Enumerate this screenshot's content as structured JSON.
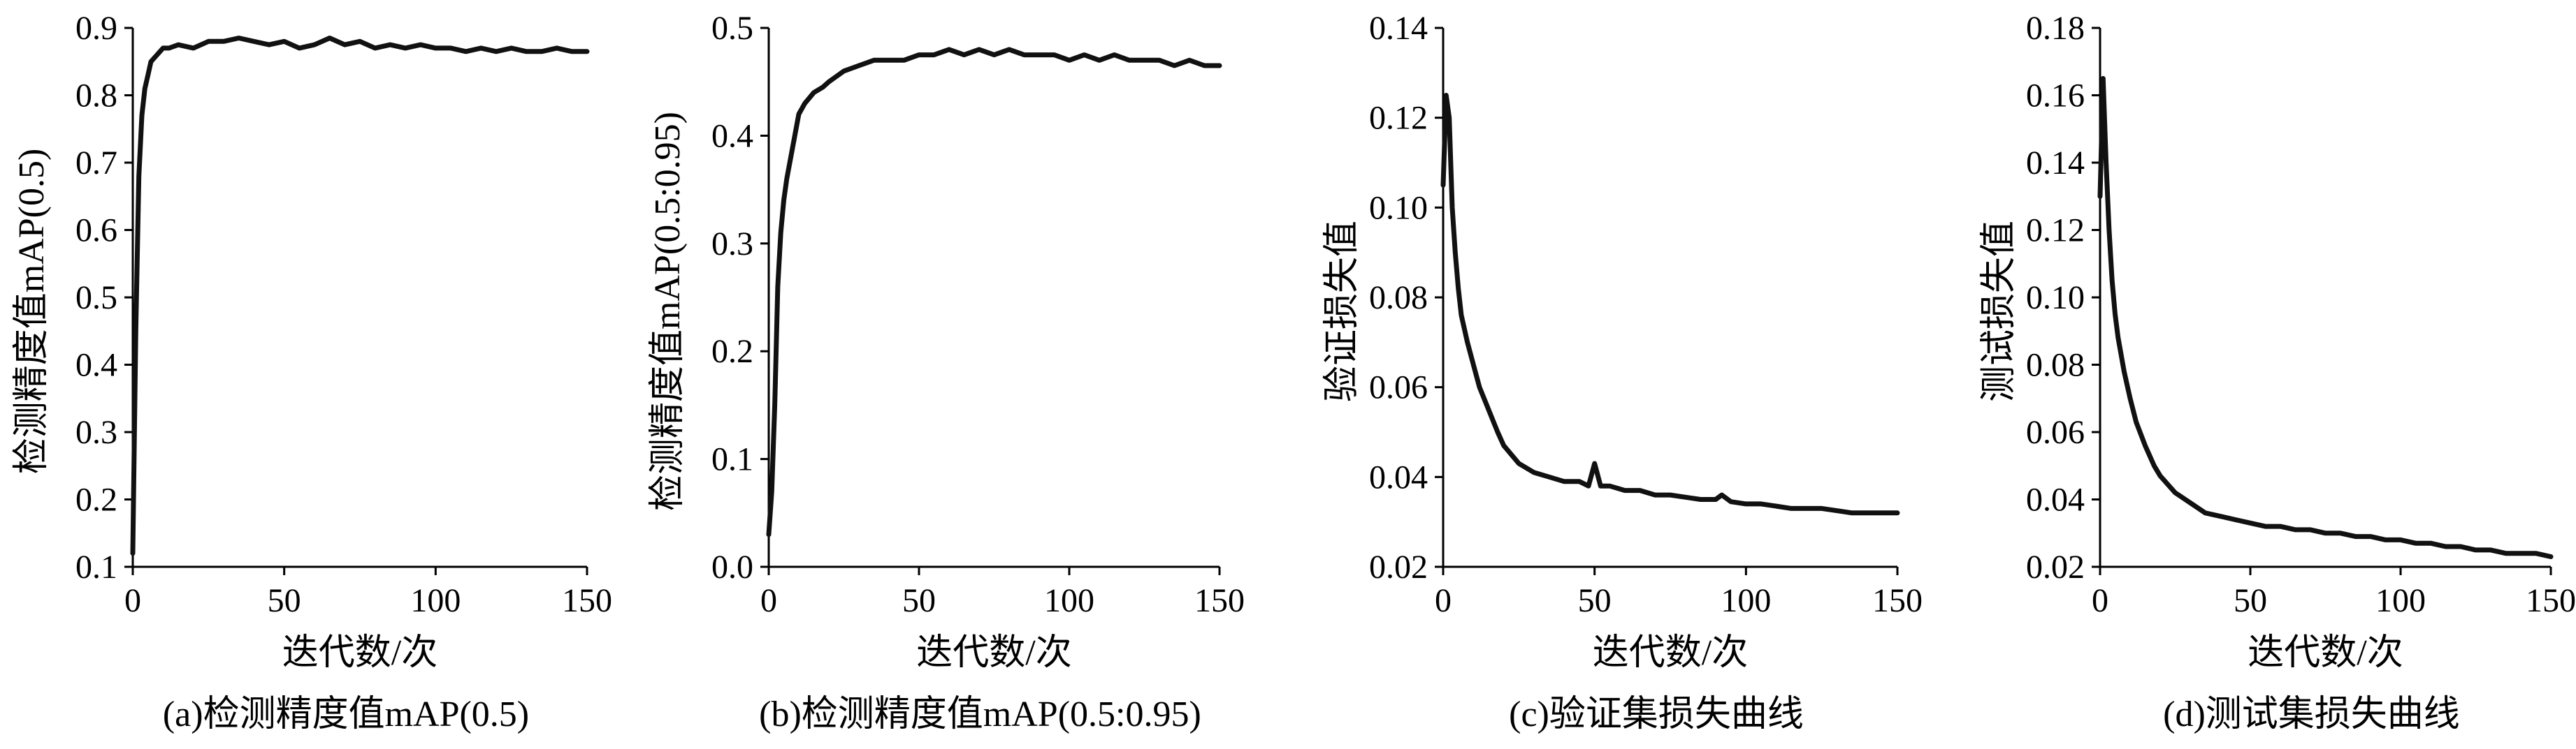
{
  "chart_data": [
    {
      "type": "line",
      "caption": "(a)检测精度值mAP(0.5)",
      "xlabel": "迭代数/次",
      "ylabel": "检测精度值mAP(0.5)",
      "xlim": [
        0,
        150
      ],
      "ylim": [
        0.1,
        0.9
      ],
      "xticks": [
        "0",
        "50",
        "100",
        "150"
      ],
      "yticks": [
        "0.1",
        "0.2",
        "0.3",
        "0.4",
        "0.5",
        "0.6",
        "0.7",
        "0.8",
        "0.9"
      ],
      "grid": false,
      "series": [
        {
          "x": [
            0,
            1,
            2,
            3,
            4,
            5,
            6,
            8,
            10,
            12,
            15,
            20,
            25,
            30,
            35,
            40,
            45,
            50,
            55,
            60,
            65,
            70,
            75,
            80,
            85,
            90,
            95,
            100,
            105,
            110,
            115,
            120,
            125,
            130,
            135,
            140,
            145,
            150
          ],
          "y": [
            0.12,
            0.45,
            0.68,
            0.77,
            0.81,
            0.83,
            0.85,
            0.86,
            0.87,
            0.87,
            0.875,
            0.87,
            0.88,
            0.88,
            0.885,
            0.88,
            0.875,
            0.88,
            0.87,
            0.875,
            0.885,
            0.875,
            0.88,
            0.87,
            0.875,
            0.87,
            0.875,
            0.87,
            0.87,
            0.865,
            0.87,
            0.865,
            0.87,
            0.865,
            0.865,
            0.87,
            0.865,
            0.865
          ]
        }
      ]
    },
    {
      "type": "line",
      "caption": "(b)检测精度值mAP(0.5:0.95)",
      "xlabel": "迭代数/次",
      "ylabel": "检测精度值mAP(0.5:0.95)",
      "xlim": [
        0,
        150
      ],
      "ylim": [
        0.0,
        0.5
      ],
      "xticks": [
        "0",
        "50",
        "100",
        "150"
      ],
      "yticks": [
        "0.0",
        "0.1",
        "0.2",
        "0.3",
        "0.4",
        "0.5"
      ],
      "grid": false,
      "series": [
        {
          "x": [
            0,
            1,
            2,
            3,
            4,
            5,
            6,
            8,
            10,
            12,
            15,
            18,
            20,
            25,
            30,
            35,
            40,
            45,
            50,
            55,
            60,
            65,
            70,
            75,
            80,
            85,
            90,
            95,
            100,
            105,
            110,
            115,
            120,
            125,
            130,
            135,
            140,
            145,
            150
          ],
          "y": [
            0.03,
            0.07,
            0.15,
            0.26,
            0.31,
            0.34,
            0.36,
            0.39,
            0.42,
            0.43,
            0.44,
            0.445,
            0.45,
            0.46,
            0.465,
            0.47,
            0.47,
            0.47,
            0.475,
            0.475,
            0.48,
            0.475,
            0.48,
            0.475,
            0.48,
            0.475,
            0.475,
            0.475,
            0.47,
            0.475,
            0.47,
            0.475,
            0.47,
            0.47,
            0.47,
            0.465,
            0.47,
            0.465,
            0.465
          ]
        }
      ]
    },
    {
      "type": "line",
      "caption": "(c)验证集损失曲线",
      "xlabel": "迭代数/次",
      "ylabel": "验证损失值",
      "xlim": [
        0,
        150
      ],
      "ylim": [
        0.02,
        0.14
      ],
      "xticks": [
        "0",
        "50",
        "100",
        "150"
      ],
      "yticks": [
        "0.02",
        "0.04",
        "0.06",
        "0.08",
        "0.10",
        "0.12",
        "0.14"
      ],
      "grid": false,
      "series": [
        {
          "x": [
            0,
            1,
            2,
            3,
            4,
            5,
            6,
            8,
            10,
            12,
            15,
            18,
            20,
            25,
            30,
            35,
            40,
            45,
            48,
            50,
            52,
            55,
            60,
            65,
            70,
            75,
            80,
            85,
            90,
            92,
            95,
            100,
            105,
            110,
            115,
            120,
            125,
            130,
            135,
            140,
            145,
            150
          ],
          "y": [
            0.105,
            0.125,
            0.12,
            0.1,
            0.09,
            0.082,
            0.076,
            0.07,
            0.065,
            0.06,
            0.055,
            0.05,
            0.047,
            0.043,
            0.041,
            0.04,
            0.039,
            0.039,
            0.038,
            0.043,
            0.038,
            0.038,
            0.037,
            0.037,
            0.036,
            0.036,
            0.0355,
            0.035,
            0.035,
            0.036,
            0.0345,
            0.034,
            0.034,
            0.0335,
            0.033,
            0.033,
            0.033,
            0.0325,
            0.032,
            0.032,
            0.032,
            0.032
          ]
        }
      ]
    },
    {
      "type": "line",
      "caption": "(d)测试集损失曲线",
      "xlabel": "迭代数/次",
      "ylabel": "测试损失值",
      "xlim": [
        0,
        150
      ],
      "ylim": [
        0.02,
        0.18
      ],
      "xticks": [
        "0",
        "50",
        "100",
        "150"
      ],
      "yticks": [
        "0.02",
        "0.04",
        "0.06",
        "0.08",
        "0.10",
        "0.12",
        "0.14",
        "0.16",
        "0.18"
      ],
      "grid": false,
      "series": [
        {
          "x": [
            0,
            1,
            2,
            3,
            4,
            5,
            6,
            8,
            10,
            12,
            15,
            18,
            20,
            25,
            30,
            35,
            40,
            45,
            50,
            55,
            60,
            65,
            70,
            75,
            80,
            85,
            90,
            95,
            100,
            105,
            110,
            115,
            120,
            125,
            130,
            135,
            140,
            145,
            150
          ],
          "y": [
            0.13,
            0.165,
            0.14,
            0.12,
            0.105,
            0.095,
            0.088,
            0.078,
            0.07,
            0.063,
            0.056,
            0.05,
            0.047,
            0.042,
            0.039,
            0.036,
            0.035,
            0.034,
            0.033,
            0.032,
            0.032,
            0.031,
            0.031,
            0.03,
            0.03,
            0.029,
            0.029,
            0.028,
            0.028,
            0.027,
            0.027,
            0.026,
            0.026,
            0.025,
            0.025,
            0.024,
            0.024,
            0.024,
            0.023
          ]
        }
      ]
    }
  ]
}
